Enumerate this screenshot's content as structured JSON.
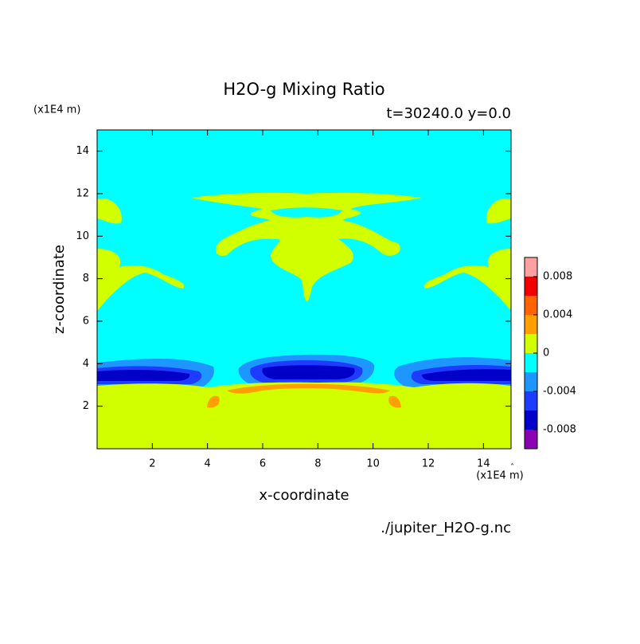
{
  "chart_data": {
    "type": "contour",
    "title": "H2O-g Mixing Ratio",
    "subtitle": "t=30240.0 y=0.0",
    "x_label": "x-coordinate",
    "y_label": "z-coordinate",
    "x_unit": "(x1E4 m)",
    "y_unit": "(x1E4 m)",
    "source": "./jupiter_H2O-g.nc",
    "xlim": [
      0,
      15
    ],
    "ylim": [
      0,
      15
    ],
    "xticks": [
      2,
      4,
      6,
      8,
      10,
      12,
      14
    ],
    "yticks": [
      2,
      4,
      6,
      8,
      10,
      12,
      14
    ],
    "levels": [
      -0.01,
      -0.008,
      -0.006,
      -0.004,
      -0.002,
      0,
      0.002,
      0.004,
      0.006,
      0.008,
      0.01
    ],
    "colors": [
      "#8c00b4",
      "#0000c8",
      "#1e3cff",
      "#1e96ff",
      "#00ffff",
      "#d2ff00",
      "#ffa000",
      "#ff6400",
      "#f00000",
      "#ffa0a0"
    ],
    "colorbar_ticks": [
      -0.008,
      -0.004,
      0,
      0.004,
      0.008
    ]
  }
}
